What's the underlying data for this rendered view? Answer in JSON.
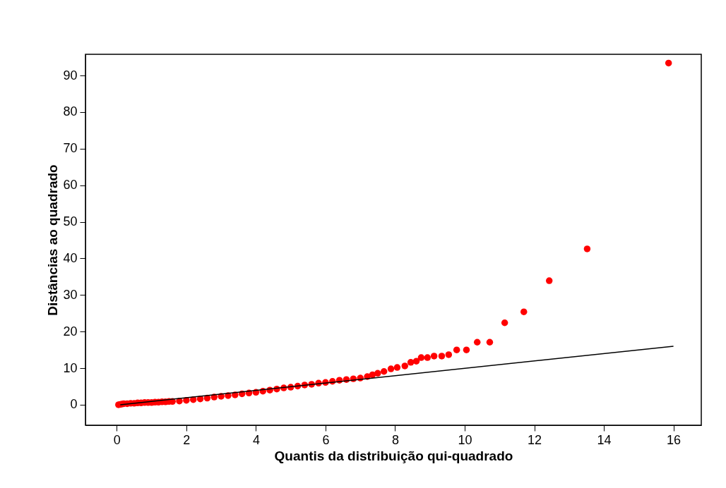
{
  "chart_data": {
    "type": "scatter",
    "xlabel": "Quantis da distribuição qui-quadrado",
    "ylabel": "Distâncias ao quadrado",
    "xlim": [
      -0.9,
      16.8
    ],
    "ylim": [
      -5.6,
      95.8
    ],
    "xticks": [
      0,
      2,
      4,
      6,
      8,
      10,
      12,
      14,
      16
    ],
    "yticks": [
      0,
      10,
      20,
      30,
      40,
      50,
      60,
      70,
      80,
      90
    ],
    "grid": false,
    "marker": "circle",
    "series": [
      {
        "color": "#ff0000",
        "x": [
          0.05,
          0.1,
          0.15,
          0.2,
          0.3,
          0.4,
          0.5,
          0.6,
          0.7,
          0.8,
          0.9,
          1.0,
          1.1,
          1.2,
          1.3,
          1.4,
          1.5,
          1.6,
          1.8,
          2.0,
          2.2,
          2.4,
          2.6,
          2.8,
          3.0,
          3.2,
          3.4,
          3.6,
          3.8,
          4.0,
          4.2,
          4.4,
          4.6,
          4.8,
          5.0,
          5.2,
          5.4,
          5.6,
          5.8,
          6.0,
          6.2,
          6.4,
          6.6,
          6.8,
          7.0,
          7.2,
          7.35,
          7.5,
          7.68,
          7.88,
          8.06,
          8.28,
          8.45,
          8.61,
          8.75,
          8.93,
          9.12,
          9.34,
          9.54,
          9.77,
          10.05,
          10.36,
          10.72,
          11.15,
          11.7,
          12.43,
          13.52,
          15.86
        ],
        "values": [
          0.0,
          0.1,
          0.2,
          0.3,
          0.3,
          0.4,
          0.4,
          0.5,
          0.5,
          0.6,
          0.6,
          0.6,
          0.7,
          0.7,
          0.8,
          0.8,
          0.9,
          0.9,
          1.0,
          1.2,
          1.4,
          1.6,
          1.8,
          2.1,
          2.3,
          2.5,
          2.7,
          3.0,
          3.2,
          3.4,
          3.7,
          4.0,
          4.3,
          4.6,
          4.8,
          5.1,
          5.4,
          5.6,
          5.9,
          6.1,
          6.4,
          6.7,
          6.9,
          7.1,
          7.3,
          7.7,
          8.2,
          8.6,
          9.1,
          9.8,
          10.2,
          10.6,
          11.6,
          11.9,
          12.9,
          12.9,
          13.3,
          13.3,
          13.7,
          15.0,
          15.0,
          17.1,
          17.1,
          22.4,
          25.4,
          33.9,
          42.6,
          93.4
        ]
      },
      {
        "type": "line",
        "marker": "none",
        "color": "#000000",
        "x": [
          0.1,
          16
        ],
        "values": [
          0,
          16
        ]
      }
    ]
  }
}
